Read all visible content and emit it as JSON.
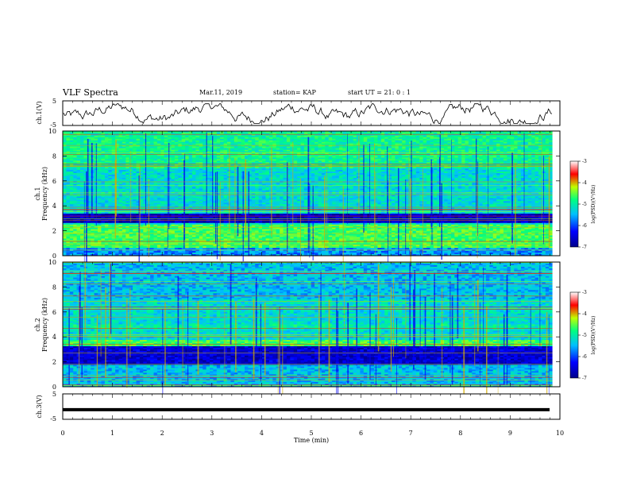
{
  "header": {
    "title": "VLF Spectra",
    "date": "Mar.11, 2019",
    "station": "station= KAP",
    "start": "start  UT  =   21: 0  : 1"
  },
  "chart_data": [
    {
      "type": "line",
      "name": "ch1-waveform",
      "ylabel": "ch.1(V)",
      "ylim": [
        -5,
        5
      ],
      "yticks": [
        "5",
        "-5"
      ],
      "xlim": [
        0,
        10
      ],
      "data_end_min": 9.85
    },
    {
      "type": "heatmap",
      "name": "ch1-spectrogram",
      "ylabel": "ch.1\nFrequency (kHz)",
      "ylim": [
        0,
        10
      ],
      "yticks": [
        "10",
        "8",
        "6",
        "4",
        "2",
        "0"
      ],
      "xlim": [
        0,
        10
      ],
      "colorbar": {
        "label": "log(PSD)(V²/Hz)",
        "range": [
          -7,
          -3
        ],
        "ticks": [
          "-3",
          "-4",
          "-5",
          "-6",
          "-7"
        ]
      }
    },
    {
      "type": "heatmap",
      "name": "ch2-spectrogram",
      "ylabel": "ch.2\nFrequency (kHz)",
      "ylim": [
        0,
        10
      ],
      "yticks": [
        "10",
        "8",
        "6",
        "4",
        "2",
        "0"
      ],
      "xlim": [
        0,
        10
      ],
      "colorbar": {
        "label": "log(PSD)(V²/Hz)",
        "range": [
          -7,
          -3
        ],
        "ticks": [
          "-3",
          "-4",
          "-5",
          "-6",
          "-7"
        ]
      }
    },
    {
      "type": "line",
      "name": "ch3-waveform",
      "ylabel": "ch.3(V)",
      "ylim": [
        -5,
        5
      ],
      "yticks": [
        "5",
        "-5"
      ],
      "xlim": [
        0,
        10
      ],
      "constant_value": -1.2
    }
  ],
  "xaxis": {
    "label": "Time (min)",
    "ticks": [
      "0",
      "1",
      "2",
      "3",
      "4",
      "5",
      "6",
      "7",
      "8",
      "9",
      "10"
    ]
  },
  "colors": {
    "frame": "#000000",
    "colormap": [
      "#00008b",
      "#0000ff",
      "#00bfff",
      "#00ff80",
      "#c0ff00",
      "#ff0000",
      "#ffffff"
    ]
  }
}
